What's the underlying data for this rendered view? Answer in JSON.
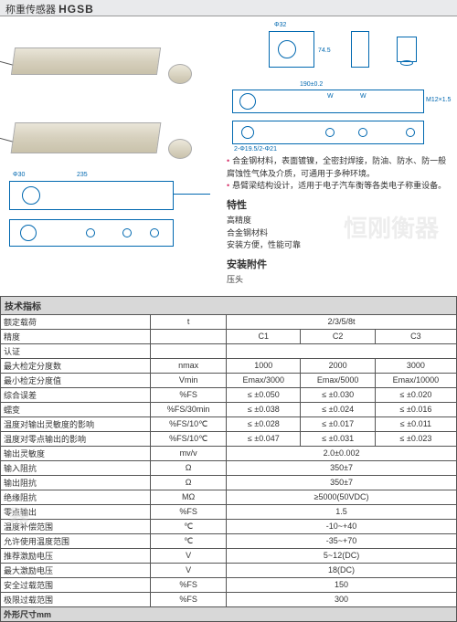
{
  "header": {
    "prefix": "称重传感器",
    "model": "HGSB"
  },
  "watermarks": {
    "w1": "",
    "w2": "恒刚衡器",
    "w3": "器"
  },
  "desc": {
    "b1": "合金钢材料，表面镀镍，全密封焊接，防油、防水、防一般腐蚀性气体及介质，可通用于多种环境。",
    "b2": "悬臂梁结构设计，适用于电子汽车衡等各类电子称重设备。"
  },
  "char": {
    "title": "特性",
    "c1": "高精度",
    "c2": "合金钢材料",
    "c3": "安装方便，性能可靠"
  },
  "acc": {
    "title": "安装附件",
    "a1": "压头"
  },
  "spec": {
    "title": "技术指标",
    "rows": [
      {
        "label": "额定载荷",
        "unit": "t",
        "v": "2/3/5/8t",
        "span": 3
      },
      {
        "label": "精度",
        "unit": "",
        "v1": "C1",
        "v2": "C2",
        "v3": "C3"
      },
      {
        "label": "认证",
        "unit": "",
        "v": "",
        "span": 3
      },
      {
        "label": "最大检定分度数",
        "unit": "nmax",
        "v1": "1000",
        "v2": "2000",
        "v3": "3000"
      },
      {
        "label": "最小检定分度值",
        "unit": "Vmin",
        "v1": "Emax/3000",
        "v2": "Emax/5000",
        "v3": "Emax/10000"
      },
      {
        "label": "综合误差",
        "unit": "%FS",
        "v1": "≤ ±0.050",
        "v2": "≤ ±0.030",
        "v3": "≤ ±0.020"
      },
      {
        "label": "蠕变",
        "unit": "%FS/30min",
        "v1": "≤ ±0.038",
        "v2": "≤ ±0.024",
        "v3": "≤ ±0.016"
      },
      {
        "label": "温度对输出灵敏度的影响",
        "unit": "%FS/10℃",
        "v1": "≤ ±0.028",
        "v2": "≤ ±0.017",
        "v3": "≤ ±0.011"
      },
      {
        "label": "温度对零点输出的影响",
        "unit": "%FS/10℃",
        "v1": "≤ ±0.047",
        "v2": "≤ ±0.031",
        "v3": "≤ ±0.023"
      },
      {
        "label": "输出灵敏度",
        "unit": "mv/v",
        "v": "2.0±0.002",
        "span": 3
      },
      {
        "label": "输入阻抗",
        "unit": "Ω",
        "v": "350±7",
        "span": 3
      },
      {
        "label": "输出阻抗",
        "unit": "Ω",
        "v": "350±7",
        "span": 3
      },
      {
        "label": "绝缘阻抗",
        "unit": "MΩ",
        "v": "≥5000(50VDC)",
        "span": 3
      },
      {
        "label": "零点输出",
        "unit": "%FS",
        "v": "1.5",
        "span": 3
      },
      {
        "label": "温度补偿范围",
        "unit": "℃",
        "v": "-10~+40",
        "span": 3
      },
      {
        "label": "允许使用温度范围",
        "unit": "℃",
        "v": "-35~+70",
        "span": 3
      },
      {
        "label": "推荐激励电压",
        "unit": "V",
        "v": "5~12(DC)",
        "span": 3
      },
      {
        "label": "最大激励电压",
        "unit": "V",
        "v": "18(DC)",
        "span": 3
      },
      {
        "label": "安全过载范围",
        "unit": "%FS",
        "v": "150",
        "span": 3
      },
      {
        "label": "极限过载范围",
        "unit": "%FS",
        "v": "300",
        "span": 3
      }
    ],
    "dim": "外形尺寸mm"
  }
}
